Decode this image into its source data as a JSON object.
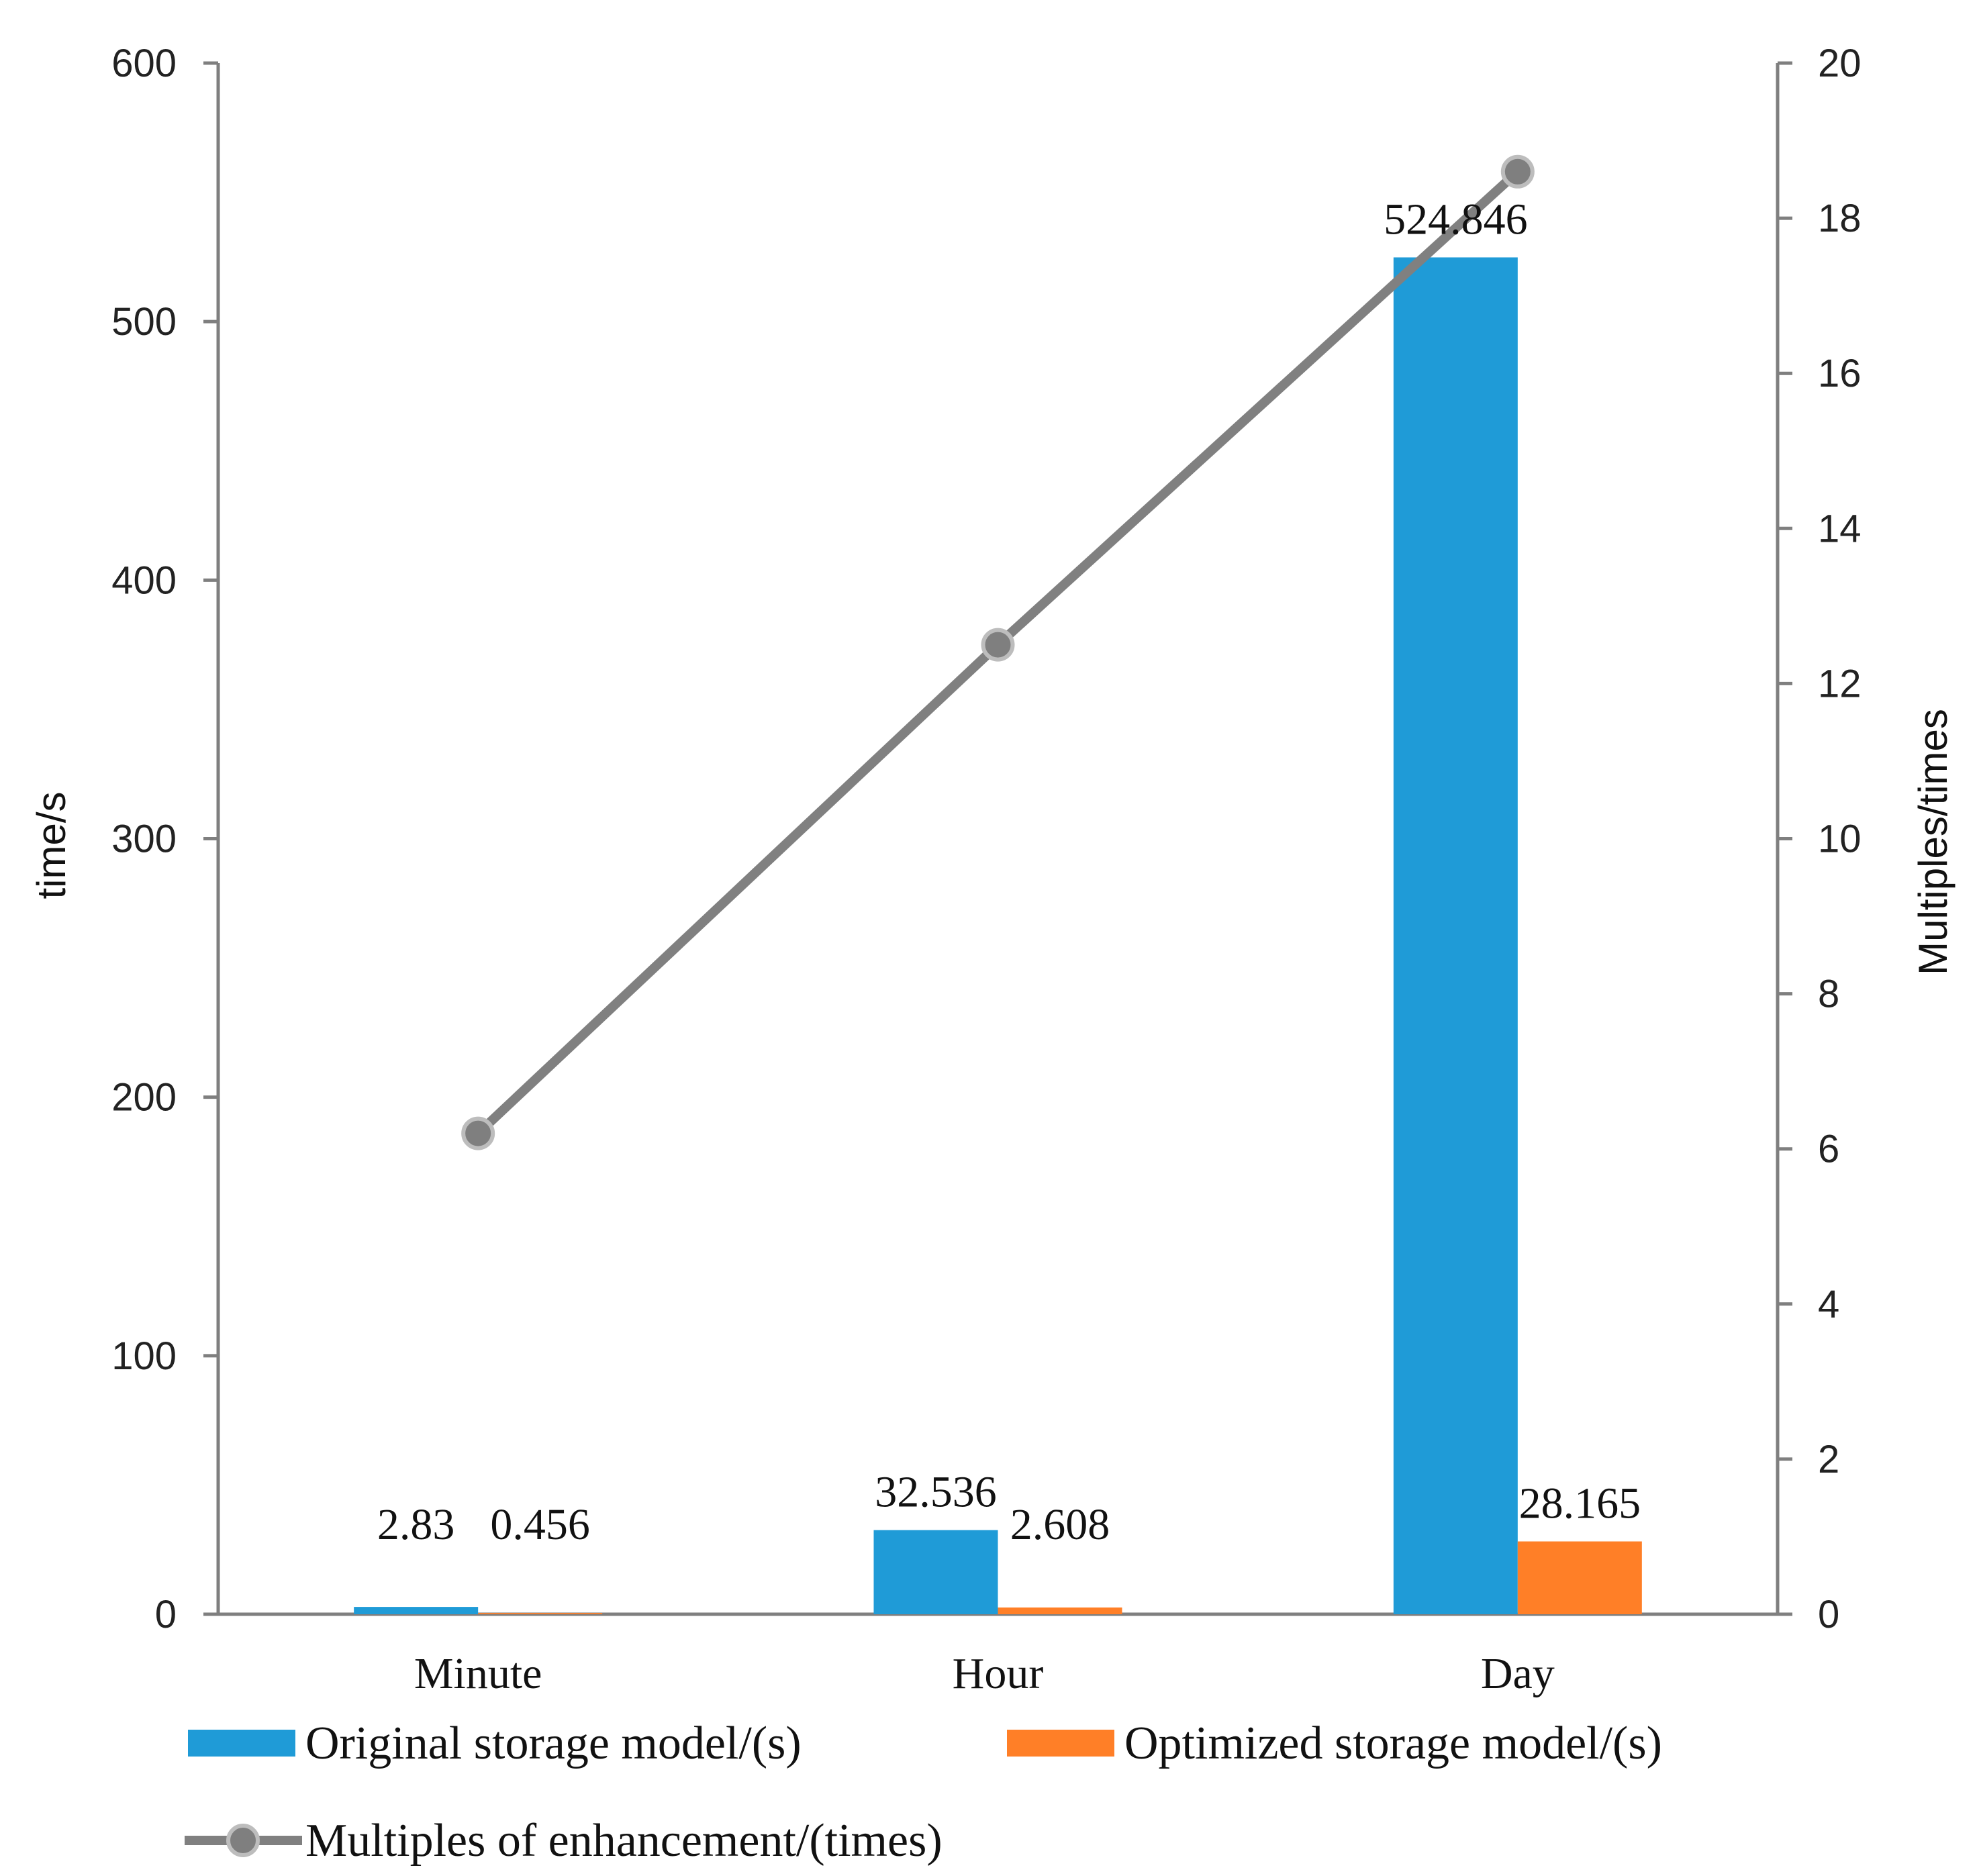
{
  "chart_data": {
    "type": "bar",
    "categories": [
      "Minute",
      "Hour",
      "Day"
    ],
    "series": [
      {
        "name": "Original storage model/(s)",
        "kind": "bar",
        "axis": "left",
        "color": "#1F9BD7",
        "values": [
          2.83,
          32.536,
          524.846
        ],
        "labels": [
          "2.83",
          "32.536",
          "524.846"
        ]
      },
      {
        "name": "Optimized storage model/(s)",
        "kind": "bar",
        "axis": "left",
        "color": "#FF7F27",
        "values": [
          0.456,
          2.608,
          28.165
        ],
        "labels": [
          "0.456",
          "2.608",
          "28.165"
        ]
      },
      {
        "name": "Multiples of enhancement/(times)",
        "kind": "line",
        "axis": "right",
        "color": "#808080",
        "values": [
          6.2,
          12.5,
          18.6
        ]
      }
    ],
    "ylabel": "time/s",
    "y2label": "Multiples/times",
    "ylim": [
      0,
      600
    ],
    "y2lim": [
      0,
      20
    ],
    "yticks": [
      0,
      100,
      200,
      300,
      400,
      500,
      600
    ],
    "y2ticks": [
      0,
      2,
      4,
      6,
      8,
      10,
      12,
      14,
      16,
      18,
      20
    ],
    "grid": false,
    "legend_position": "bottom"
  }
}
